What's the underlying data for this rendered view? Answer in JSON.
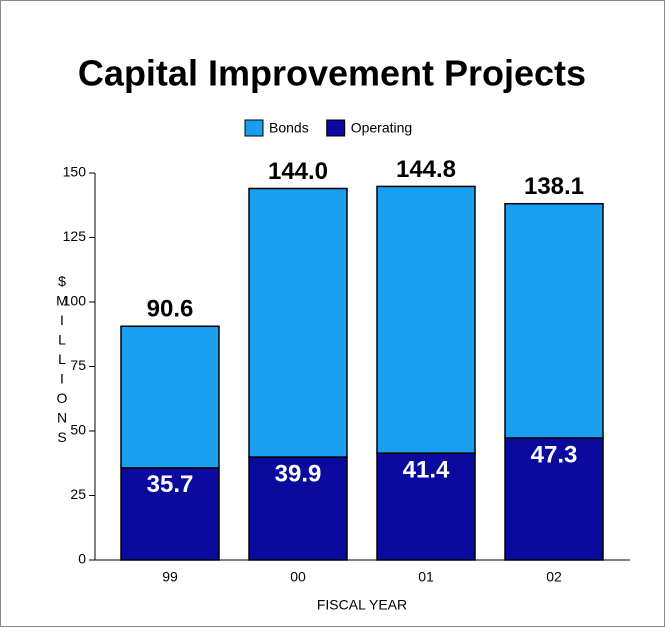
{
  "chart_data": {
    "type": "bar",
    "stacked": true,
    "title": "Capital Improvement Projects",
    "categories": [
      "99",
      "00",
      "01",
      "02"
    ],
    "series": [
      {
        "name": "Operating",
        "color": "#0a0a9e",
        "values": [
          35.7,
          39.9,
          41.4,
          47.3
        ]
      },
      {
        "name": "Bonds",
        "color": "#1a9ff0",
        "values": [
          54.9,
          104.1,
          103.4,
          90.8
        ]
      }
    ],
    "totals": [
      "90.6",
      "144.0",
      "144.8",
      "138.1"
    ],
    "legend_order": [
      1,
      0
    ],
    "xlabel": "FISCAL YEAR",
    "ylabel": "$MILLIONS",
    "ylim": [
      0,
      150
    ],
    "yticks": [
      0,
      25,
      50,
      75,
      100,
      125,
      150
    ],
    "grid": false
  }
}
